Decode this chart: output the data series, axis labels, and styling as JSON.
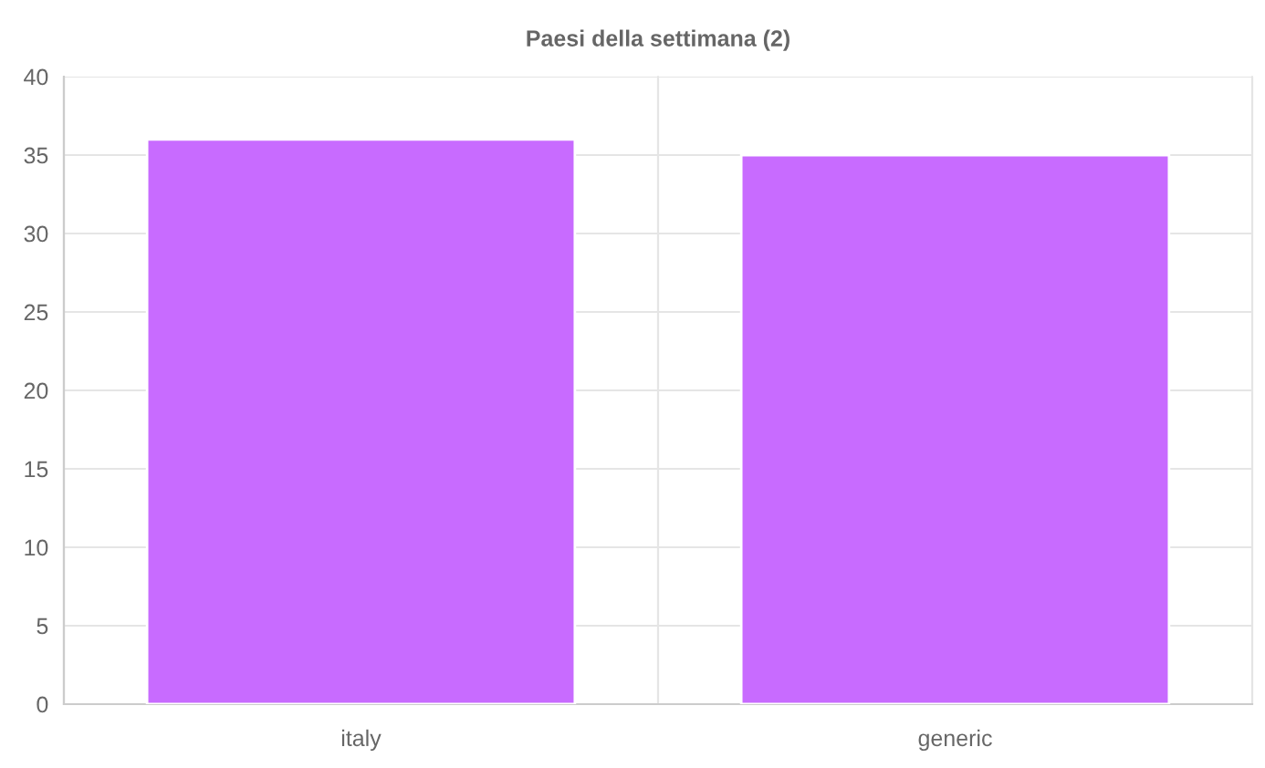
{
  "chart_data": {
    "type": "bar",
    "title": "Paesi della settimana (2)",
    "categories": [
      "italy",
      "generic"
    ],
    "values": [
      36,
      35
    ],
    "color": "#c86bff",
    "ylim": [
      0,
      40
    ],
    "yticks": [
      0,
      5,
      10,
      15,
      20,
      25,
      30,
      35,
      40
    ],
    "grid": true
  }
}
